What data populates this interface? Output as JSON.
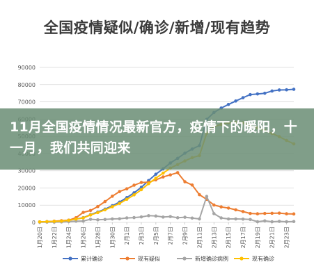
{
  "title": "全国疫情疑似/确诊/新增/现有趋势",
  "banner": {
    "text": "11月全国疫情情况最新官方，疫情下的暖阳，十一月，我们共同迎来"
  },
  "chart_data": {
    "type": "line",
    "title": "全国疫情疑似/确诊/新增/现有趋势",
    "ylim": [
      0,
      90000
    ],
    "yticks": [
      0,
      10000,
      20000,
      30000,
      40000,
      50000,
      60000,
      70000,
      80000,
      90000
    ],
    "x": [
      "1月20日",
      "1月21日",
      "1月22日",
      "1月23日",
      "1月24日",
      "1月25日",
      "1月26日",
      "1月27日",
      "1月28日",
      "1月29日",
      "1月30日",
      "1月31日",
      "2月1日",
      "2月2日",
      "2月3日",
      "2月4日",
      "2月5日",
      "2月6日",
      "2月7日",
      "2月8日",
      "2月9日",
      "2月10日",
      "2月11日",
      "2月12日",
      "2月13日",
      "2月14日",
      "2月15日",
      "2月16日",
      "2月17日",
      "2月18日",
      "2月19日",
      "2月20日",
      "2月21日",
      "2月22日",
      "2月23日",
      "2月24日"
    ],
    "xtick_labels": [
      "1月20日",
      "1月22日",
      "1月24日",
      "1月26日",
      "1月28日",
      "1月30日",
      "2月1日",
      "2月3日",
      "2月5日",
      "2月7日",
      "2月9日",
      "2月11日",
      "2月13日",
      "2月15日",
      "2月17日",
      "2月19日",
      "2月21日",
      "2月23日"
    ],
    "grid": true,
    "legend_position": "bottom",
    "series": [
      {
        "name": "累计确诊",
        "color": "#4472c4",
        "values": [
          300,
          450,
          600,
          800,
          1300,
          2000,
          2700,
          4500,
          6000,
          7700,
          9700,
          11800,
          14400,
          17200,
          20400,
          24300,
          28000,
          31100,
          34500,
          37200,
          40200,
          42600,
          44600,
          59800,
          63800,
          66400,
          68500,
          70500,
          72400,
          74200,
          74600,
          75000,
          76300,
          76900,
          77000,
          77300
        ]
      },
      {
        "name": "现有疑似",
        "color": "#ed7d31",
        "values": [
          300,
          400,
          700,
          1000,
          1300,
          2700,
          5800,
          6900,
          9200,
          12100,
          15200,
          17900,
          19500,
          21600,
          23200,
          23300,
          24700,
          26400,
          27600,
          28900,
          23600,
          21700,
          16100,
          13400,
          10100,
          9000,
          8300,
          7300,
          6300,
          5200,
          5000,
          5200,
          5300,
          5400,
          5000,
          4900
        ]
      },
      {
        "name": "新增确诊病例",
        "color": "#a5a5a5",
        "values": [
          100,
          150,
          150,
          250,
          450,
          700,
          800,
          1800,
          1500,
          1700,
          2000,
          2100,
          2600,
          2800,
          3200,
          3900,
          3700,
          3100,
          3400,
          2700,
          3000,
          2500,
          2000,
          15100,
          5100,
          2600,
          2000,
          2000,
          1900,
          1700,
          400,
          900,
          400,
          600,
          400,
          500
        ]
      },
      {
        "name": "现有确诊",
        "color": "#ffc000",
        "values": [
          300,
          450,
          600,
          750,
          1200,
          1900,
          2600,
          4300,
          5700,
          7300,
          9100,
          11000,
          13400,
          16000,
          19000,
          22500,
          25700,
          28600,
          31500,
          33600,
          35700,
          37600,
          38800,
          51800,
          55700,
          56900,
          57900,
          58000,
          57800,
          56300,
          54900,
          53300,
          51600,
          49800,
          47600,
          45600
        ]
      }
    ]
  }
}
